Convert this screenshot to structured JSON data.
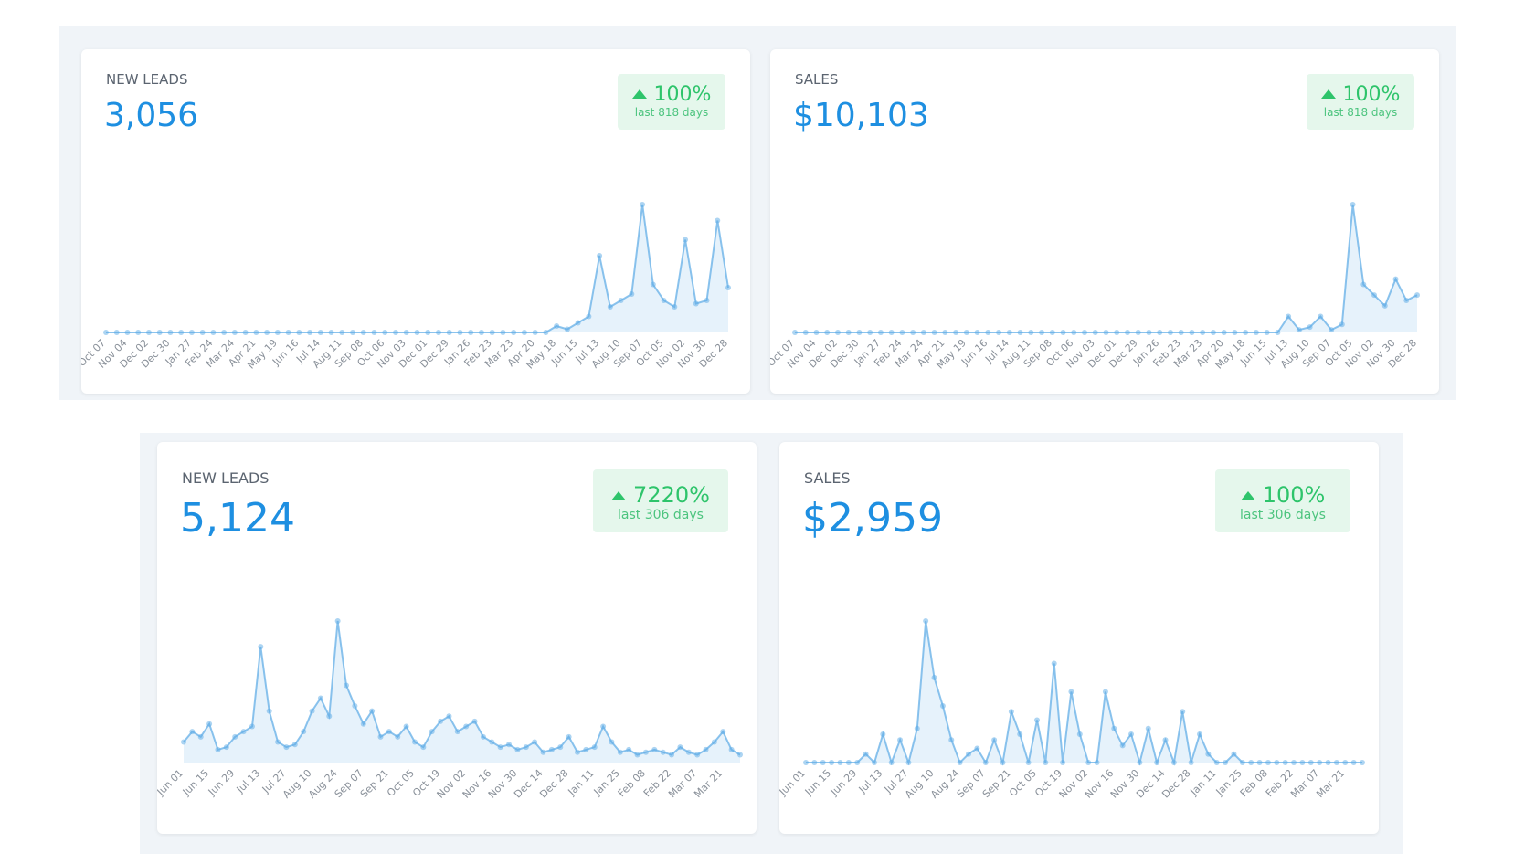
{
  "chart_data": [
    {
      "type": "line",
      "title": "NEW LEADS",
      "total": "3,056",
      "change": "100%",
      "period": "last 818 days",
      "color": "#5aa9e6",
      "categories": [
        "Oct 07",
        null,
        "Nov 04",
        null,
        "Dec 02",
        null,
        "Dec 30",
        null,
        "Jan 27",
        null,
        "Feb 24",
        null,
        "Mar 24",
        null,
        "Apr 21",
        null,
        "May 19",
        null,
        "Jun 16",
        null,
        "Jul 14",
        null,
        "Aug 11",
        null,
        "Sep 08",
        null,
        "Oct 06",
        null,
        "Nov 03",
        null,
        "Dec 01",
        null,
        "Dec 29",
        null,
        "Jan 26",
        null,
        "Feb 23",
        null,
        "Mar 23",
        null,
        "Apr 20",
        null,
        "May 18",
        null,
        "Jun 15",
        null,
        "Jul 13",
        null,
        "Aug 10",
        null,
        "Sep 07",
        null,
        "Oct 05",
        null,
        "Nov 02",
        null,
        "Nov 30",
        null,
        "Dec 28"
      ],
      "values": [
        0,
        0,
        0,
        0,
        0,
        0,
        0,
        0,
        0,
        0,
        0,
        0,
        0,
        0,
        0,
        0,
        0,
        0,
        0,
        0,
        0,
        0,
        0,
        0,
        0,
        0,
        0,
        0,
        0,
        0,
        0,
        0,
        0,
        0,
        0,
        0,
        0,
        0,
        0,
        0,
        0,
        0,
        2,
        1,
        3,
        5,
        24,
        8,
        10,
        12,
        40,
        15,
        10,
        8,
        29,
        9,
        10,
        35,
        14
      ]
    },
    {
      "type": "line",
      "title": "SALES",
      "total": "$10,103",
      "change": "100%",
      "period": "last 818 days",
      "color": "#5aa9e6",
      "categories": [
        "Oct 07",
        null,
        "Nov 04",
        null,
        "Dec 02",
        null,
        "Dec 30",
        null,
        "Jan 27",
        null,
        "Feb 24",
        null,
        "Mar 24",
        null,
        "Apr 21",
        null,
        "May 19",
        null,
        "Jun 16",
        null,
        "Jul 14",
        null,
        "Aug 11",
        null,
        "Sep 08",
        null,
        "Oct 06",
        null,
        "Nov 03",
        null,
        "Dec 01",
        null,
        "Dec 29",
        null,
        "Jan 26",
        null,
        "Feb 23",
        null,
        "Mar 23",
        null,
        "Apr 20",
        null,
        "May 18",
        null,
        "Jun 15",
        null,
        "Jul 13",
        null,
        "Aug 10",
        null,
        "Sep 07",
        null,
        "Oct 05",
        null,
        "Nov 02",
        null,
        "Nov 30",
        null,
        "Dec 28"
      ],
      "values": [
        0,
        0,
        0,
        0,
        0,
        0,
        0,
        0,
        0,
        0,
        0,
        0,
        0,
        0,
        0,
        0,
        0,
        0,
        0,
        0,
        0,
        0,
        0,
        0,
        0,
        0,
        0,
        0,
        0,
        0,
        0,
        0,
        0,
        0,
        0,
        0,
        0,
        0,
        0,
        0,
        0,
        0,
        0,
        0,
        0,
        0,
        6,
        1,
        2,
        6,
        1,
        3,
        48,
        18,
        14,
        10,
        20,
        12,
        14
      ]
    },
    {
      "type": "line",
      "title": "NEW LEADS",
      "total": "5,124",
      "change": "7220%",
      "period": "last 306 days",
      "color": "#5aa9e6",
      "categories": [
        "Jun 01",
        null,
        null,
        "Jun 15",
        null,
        null,
        "Jun 29",
        null,
        null,
        "Jul 13",
        null,
        null,
        "Jul 27",
        null,
        null,
        "Aug 10",
        null,
        null,
        "Aug 24",
        null,
        null,
        "Sep 07",
        null,
        null,
        "Sep 21",
        null,
        null,
        "Oct 05",
        null,
        null,
        "Oct 19",
        null,
        null,
        "Nov 02",
        null,
        null,
        "Nov 16",
        null,
        null,
        "Nov 30",
        null,
        null,
        "Dec 14",
        null,
        null,
        "Dec 28",
        null,
        null,
        "Jan 11",
        null,
        null,
        "Jan 25",
        null,
        null,
        "Feb 08",
        null,
        null,
        "Feb 22",
        null,
        null,
        "Mar 07",
        null,
        null,
        "Mar 21",
        null,
        null
      ],
      "values": [
        8,
        12,
        10,
        15,
        5,
        6,
        10,
        12,
        14,
        45,
        20,
        8,
        6,
        7,
        12,
        20,
        25,
        18,
        55,
        30,
        22,
        15,
        20,
        10,
        12,
        10,
        14,
        8,
        6,
        12,
        16,
        18,
        12,
        14,
        16,
        10,
        8,
        6,
        7,
        5,
        6,
        8,
        4,
        5,
        6,
        10,
        4,
        5,
        6,
        14,
        8,
        4,
        5,
        3,
        4,
        5,
        4,
        3,
        6,
        4,
        3,
        5,
        8,
        12,
        5,
        3
      ]
    },
    {
      "type": "line",
      "title": "SALES",
      "total": "$2,959",
      "change": "100%",
      "period": "last 306 days",
      "color": "#5aa9e6",
      "categories": [
        "Jun 01",
        null,
        null,
        "Jun 15",
        null,
        null,
        "Jun 29",
        null,
        null,
        "Jul 13",
        null,
        null,
        "Jul 27",
        null,
        null,
        "Aug 10",
        null,
        null,
        "Aug 24",
        null,
        null,
        "Sep 07",
        null,
        null,
        "Sep 21",
        null,
        null,
        "Oct 05",
        null,
        null,
        "Oct 19",
        null,
        null,
        "Nov 02",
        null,
        null,
        "Nov 16",
        null,
        null,
        "Nov 30",
        null,
        null,
        "Dec 14",
        null,
        null,
        "Dec 28",
        null,
        null,
        "Jan 11",
        null,
        null,
        "Jan 25",
        null,
        null,
        "Feb 08",
        null,
        null,
        "Feb 22",
        null,
        null,
        "Mar 07",
        null,
        null,
        "Mar 21",
        null,
        null
      ],
      "values": [
        0,
        0,
        0,
        0,
        0,
        0,
        0,
        3,
        0,
        10,
        0,
        8,
        0,
        12,
        50,
        30,
        20,
        8,
        0,
        3,
        5,
        0,
        8,
        0,
        18,
        10,
        0,
        15,
        0,
        35,
        0,
        25,
        10,
        0,
        0,
        25,
        12,
        6,
        10,
        0,
        12,
        0,
        8,
        0,
        18,
        0,
        10,
        3,
        0,
        0,
        3,
        0,
        0,
        0,
        0,
        0,
        0,
        0,
        0,
        0,
        0,
        0,
        0,
        0,
        0,
        0
      ]
    }
  ]
}
